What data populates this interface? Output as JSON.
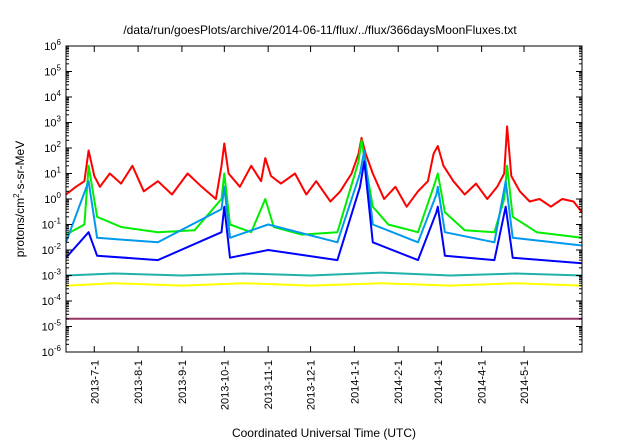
{
  "chart_data": {
    "type": "line",
    "title": "/data/run/goesPlots/archive/2014-06-11/flux/../flux/366daysMoonFluxes.txt",
    "xlabel": "Coordinated Universal Time (UTC)",
    "ylabel_parts": [
      "protons/cm",
      "2",
      "-s-sr-MeV"
    ],
    "yscale": "log",
    "ylim": [
      1e-06,
      1000000.0
    ],
    "xlim": [
      "2013-06-11",
      "2014-06-11"
    ],
    "grid": false,
    "y_ticks": [
      {
        "value": 1e-06,
        "base": "10",
        "exp": "-6"
      },
      {
        "value": 1e-05,
        "base": "10",
        "exp": "-5"
      },
      {
        "value": 0.0001,
        "base": "10",
        "exp": "-4"
      },
      {
        "value": 0.001,
        "base": "10",
        "exp": "-3"
      },
      {
        "value": 0.01,
        "base": "10",
        "exp": "-2"
      },
      {
        "value": 0.1,
        "base": "10",
        "exp": "-1"
      },
      {
        "value": 1,
        "base": "10",
        "exp": "0"
      },
      {
        "value": 10,
        "base": "10",
        "exp": "1"
      },
      {
        "value": 100,
        "base": "10",
        "exp": "2"
      },
      {
        "value": 1000,
        "base": "10",
        "exp": "3"
      },
      {
        "value": 10000,
        "base": "10",
        "exp": "4"
      },
      {
        "value": 100000,
        "base": "10",
        "exp": "5"
      },
      {
        "value": 1000000,
        "base": "10",
        "exp": "6"
      }
    ],
    "x_ticks": [
      "2013-7-1",
      "2013-8-1",
      "2013-9-1",
      "2013-10-1",
      "2013-11-1",
      "2013-12-1",
      "2014-1-1",
      "2014-2-1",
      "2014-3-1",
      "2014-4-1",
      "2014-5-1"
    ],
    "series": [
      {
        "color": "#ff0000",
        "x": [
          "2013-06-11",
          "2013-06-18",
          "2013-06-24",
          "2013-06-27",
          "2013-07-01",
          "2013-07-05",
          "2013-07-12",
          "2013-07-20",
          "2013-07-28",
          "2013-08-05",
          "2013-08-15",
          "2013-08-25",
          "2013-09-05",
          "2013-09-15",
          "2013-09-25",
          "2013-09-29",
          "2013-10-01",
          "2013-10-04",
          "2013-10-12",
          "2013-10-20",
          "2013-10-27",
          "2013-10-30",
          "2013-11-03",
          "2013-11-10",
          "2013-11-20",
          "2013-11-28",
          "2013-12-05",
          "2013-12-15",
          "2013-12-22",
          "2013-12-30",
          "2014-01-04",
          "2014-01-06",
          "2014-01-09",
          "2014-01-14",
          "2014-01-22",
          "2014-01-30",
          "2014-02-07",
          "2014-02-15",
          "2014-02-22",
          "2014-02-26",
          "2014-03-01",
          "2014-03-05",
          "2014-03-12",
          "2014-03-20",
          "2014-03-28",
          "2014-04-05",
          "2014-04-12",
          "2014-04-17",
          "2014-04-19",
          "2014-04-22",
          "2014-04-28",
          "2014-05-05",
          "2014-05-12",
          "2014-05-20",
          "2014-05-28",
          "2014-06-05",
          "2014-06-11"
        ],
        "y": [
          1.5,
          3,
          5,
          80,
          8,
          3,
          10,
          4,
          20,
          2,
          5,
          1.5,
          10,
          3,
          1,
          20,
          150,
          10,
          3,
          20,
          5,
          40,
          8,
          4,
          10,
          1.5,
          5,
          0.8,
          2,
          10,
          60,
          250,
          60,
          10,
          1,
          3,
          0.5,
          2,
          5,
          60,
          120,
          20,
          5,
          1.5,
          4,
          1,
          3,
          10,
          700,
          8,
          2,
          0.8,
          1,
          0.5,
          1,
          0.8,
          0.3
        ]
      },
      {
        "color": "#00ee00",
        "x": [
          "2013-06-11",
          "2013-06-24",
          "2013-06-27",
          "2013-07-03",
          "2013-07-20",
          "2013-08-15",
          "2013-09-10",
          "2013-09-29",
          "2013-10-01",
          "2013-10-05",
          "2013-10-20",
          "2013-10-30",
          "2013-11-05",
          "2013-11-25",
          "2013-12-20",
          "2014-01-04",
          "2014-01-06",
          "2014-01-09",
          "2014-01-14",
          "2014-01-25",
          "2014-02-15",
          "2014-02-26",
          "2014-03-01",
          "2014-03-06",
          "2014-03-20",
          "2014-04-10",
          "2014-04-17",
          "2014-04-19",
          "2014-04-23",
          "2014-05-10",
          "2014-06-11"
        ],
        "y": [
          0.04,
          0.1,
          20,
          0.2,
          0.08,
          0.05,
          0.06,
          1,
          10,
          0.1,
          0.05,
          1,
          0.08,
          0.04,
          0.05,
          30,
          200,
          20,
          0.5,
          0.1,
          0.05,
          3,
          10,
          0.3,
          0.06,
          0.05,
          1,
          20,
          0.2,
          0.05,
          0.03
        ]
      },
      {
        "color": "#0099ee",
        "x": [
          "2013-06-11",
          "2013-06-27",
          "2013-07-03",
          "2013-08-15",
          "2013-09-29",
          "2013-10-01",
          "2013-10-05",
          "2013-11-01",
          "2013-12-20",
          "2014-01-05",
          "2014-01-08",
          "2014-01-14",
          "2014-02-15",
          "2014-02-28",
          "2014-03-01",
          "2014-03-06",
          "2014-04-10",
          "2014-04-18",
          "2014-04-23",
          "2014-06-11"
        ],
        "y": [
          0.02,
          5,
          0.03,
          0.02,
          0.4,
          3,
          0.03,
          0.1,
          0.02,
          10,
          80,
          0.1,
          0.02,
          1.5,
          3,
          0.05,
          0.02,
          5,
          0.03,
          0.015
        ]
      },
      {
        "color": "#0000ff",
        "x": [
          "2013-06-11",
          "2013-06-27",
          "2013-07-03",
          "2013-08-15",
          "2013-09-29",
          "2013-10-01",
          "2013-10-05",
          "2013-11-01",
          "2013-12-20",
          "2014-01-05",
          "2014-01-08",
          "2014-01-14",
          "2014-02-15",
          "2014-02-28",
          "2014-03-01",
          "2014-03-06",
          "2014-04-10",
          "2014-04-18",
          "2014-04-23",
          "2014-06-11"
        ],
        "y": [
          0.005,
          0.05,
          0.006,
          0.004,
          0.05,
          0.5,
          0.005,
          0.01,
          0.004,
          3,
          30,
          0.02,
          0.004,
          0.3,
          0.5,
          0.006,
          0.004,
          0.5,
          0.005,
          0.003
        ]
      },
      {
        "color": "#20b2aa",
        "x": [
          "2013-06-11",
          "2013-07-15",
          "2013-09-01",
          "2013-10-15",
          "2013-12-01",
          "2014-01-20",
          "2014-03-10",
          "2014-04-25",
          "2014-06-11"
        ],
        "y": [
          0.001,
          0.0012,
          0.001,
          0.0012,
          0.001,
          0.0013,
          0.001,
          0.0012,
          0.001
        ]
      },
      {
        "color": "#ffff00",
        "x": [
          "2013-06-11",
          "2013-07-15",
          "2013-09-01",
          "2013-10-15",
          "2013-12-01",
          "2014-01-20",
          "2014-03-10",
          "2014-04-25",
          "2014-06-11"
        ],
        "y": [
          0.0004,
          0.0005,
          0.0004,
          0.0005,
          0.0004,
          0.0005,
          0.0004,
          0.0005,
          0.0004
        ]
      },
      {
        "color": "#993366",
        "x": [
          "2013-06-11",
          "2013-07-15",
          "2013-09-01",
          "2013-10-15",
          "2013-12-01",
          "2014-01-20",
          "2014-03-10",
          "2014-04-25",
          "2014-06-11"
        ],
        "y": [
          2e-05,
          2e-05,
          2e-05,
          2e-05,
          2e-05,
          2e-05,
          2e-05,
          2e-05,
          2e-05
        ]
      }
    ]
  }
}
